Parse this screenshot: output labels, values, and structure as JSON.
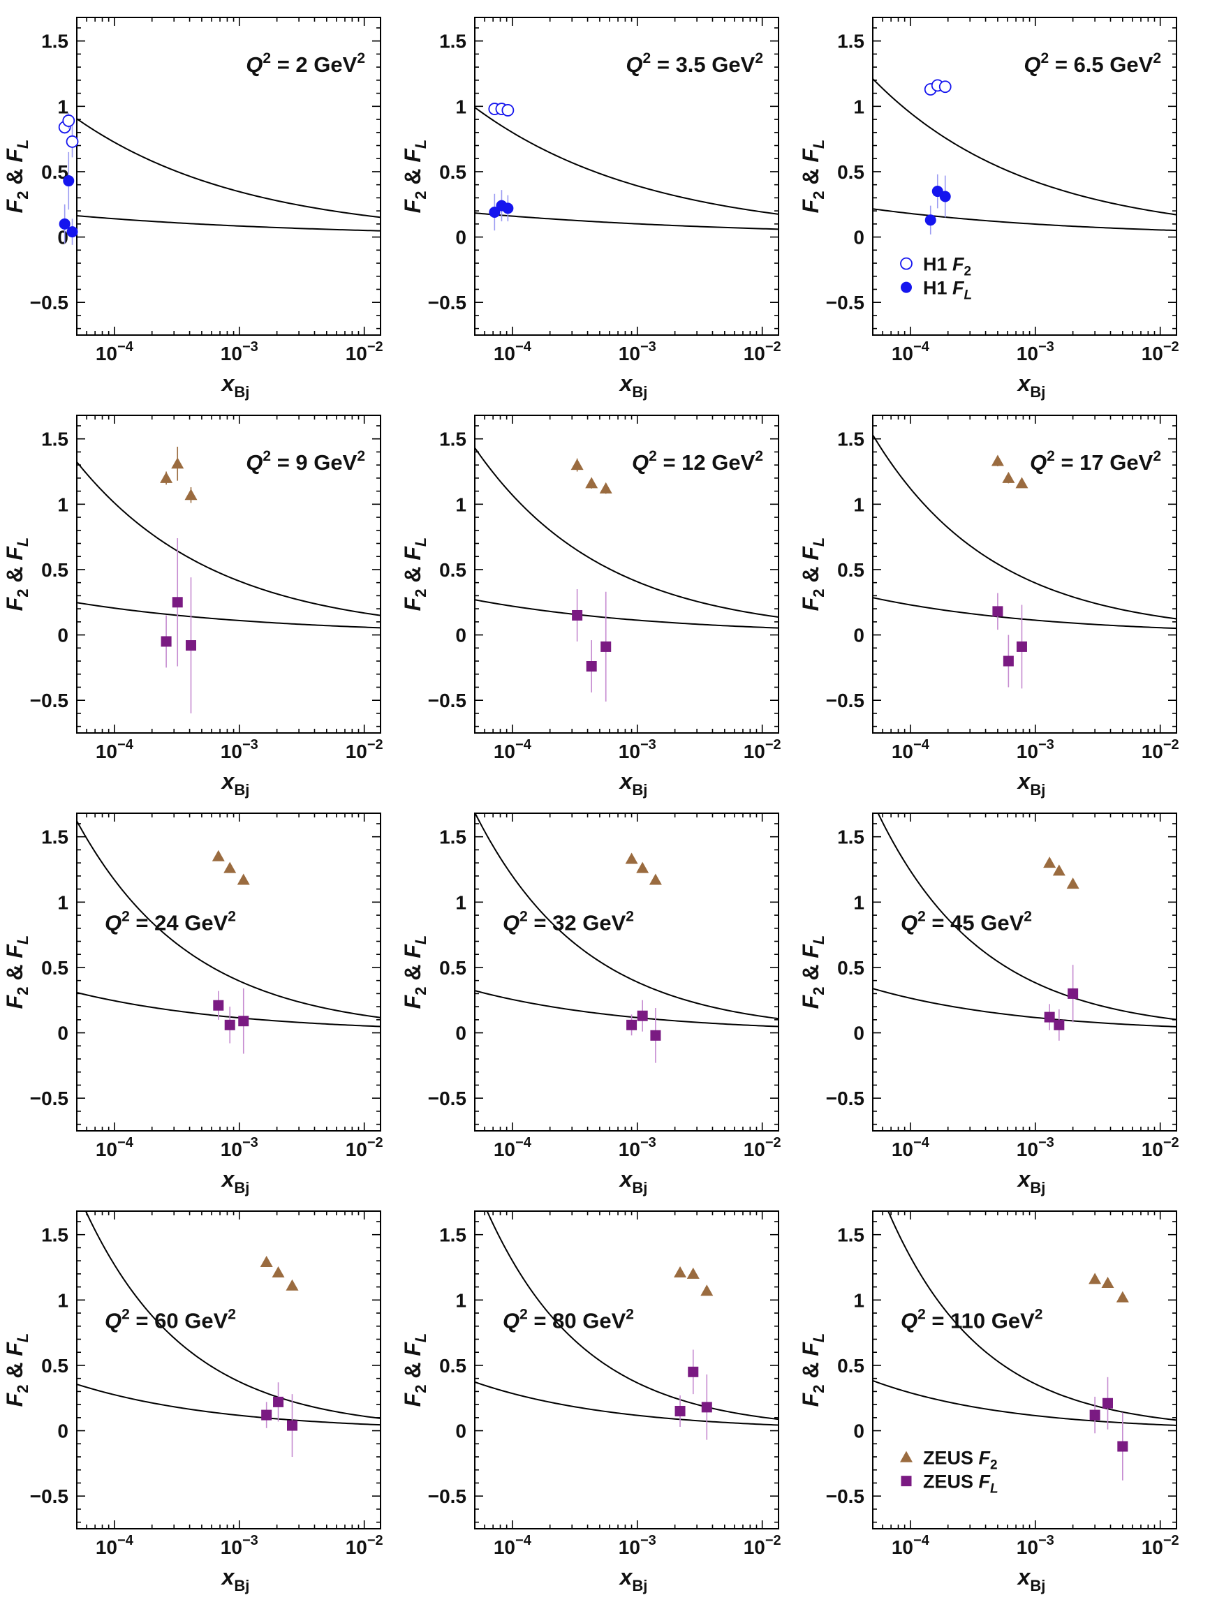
{
  "colors": {
    "h1": "#1515ee",
    "zeus_f2": "#9a6b3f",
    "zeus_fl": "#7a1a82",
    "zeus_fl_bar": "#c58ad0",
    "h1_bar": "#9a9af2",
    "curve": "#000000"
  },
  "chart_data": {
    "type": "scatter",
    "layout": "4x3 grid of panels",
    "xscale": "log",
    "xlim": [
      5e-05,
      0.0135
    ],
    "ylim": [
      -0.75,
      1.68
    ],
    "xlabel_main": "x",
    "xlabel_sub": "Bj",
    "ylabel": "F2 & FL",
    "ylabel_parts": {
      "f": "F",
      "two": "2",
      "amp": " & ",
      "l": "L"
    },
    "yticks": [
      {
        "v": -0.5,
        "label": "−0.5"
      },
      {
        "v": 0,
        "label": "0"
      },
      {
        "v": 0.5,
        "label": "0.5"
      },
      {
        "v": 1,
        "label": "1"
      },
      {
        "v": 1.5,
        "label": "1.5"
      }
    ],
    "xticks": [
      {
        "v": 0.0001,
        "base": "10",
        "exp": "−4"
      },
      {
        "v": 0.001,
        "base": "10",
        "exp": "−3"
      },
      {
        "v": 0.01,
        "base": "10",
        "exp": "−2"
      }
    ],
    "legend_h1": {
      "panel": 2,
      "position": "lower-left",
      "items": [
        {
          "label": "H1 ",
          "sym": "F",
          "sub": "2",
          "marker": "open-circle"
        },
        {
          "label": "H1 ",
          "sym": "F",
          "sub": "L",
          "marker": "filled-circle"
        }
      ]
    },
    "legend_zeus": {
      "panel": 11,
      "position": "lower-left",
      "items": [
        {
          "label": "ZEUS ",
          "sym": "F",
          "sub": "2",
          "marker": "triangle"
        },
        {
          "label": "ZEUS ",
          "sym": "F",
          "sub": "L",
          "marker": "square"
        }
      ]
    },
    "panels": [
      {
        "q2": "2",
        "q2_pos": "top-right",
        "f2_curve": {
          "a": 0.725,
          "b": 0.32
        },
        "fl_curve": {
          "a": 0.14,
          "b": 0.22
        },
        "f2": [
          {
            "x": 4e-05,
            "y": 0.84,
            "e": 0.05
          },
          {
            "x": 4.3e-05,
            "y": 0.89,
            "e": 0.06
          },
          {
            "x": 4.6e-05,
            "y": 0.73,
            "e": 0.12
          }
        ],
        "fl": [
          {
            "x": 4e-05,
            "y": 0.1,
            "e": 0.15
          },
          {
            "x": 4.3e-05,
            "y": 0.43,
            "e": 0.22
          },
          {
            "x": 4.6e-05,
            "y": 0.04,
            "e": 0.1
          }
        ],
        "f2_marker": "open-circle",
        "fl_marker": "filled-circle"
      },
      {
        "q2": "3.5",
        "q2_pos": "top-right",
        "f2_curve": {
          "a": 0.8,
          "b": 0.31
        },
        "fl_curve": {
          "a": 0.16,
          "b": 0.2
        },
        "f2": [
          {
            "x": 7.2e-05,
            "y": 0.98,
            "e": 0.04
          },
          {
            "x": 8.2e-05,
            "y": 0.98,
            "e": 0.03
          },
          {
            "x": 9.2e-05,
            "y": 0.97,
            "e": 0.03
          }
        ],
        "fl": [
          {
            "x": 7.2e-05,
            "y": 0.19,
            "e": 0.14
          },
          {
            "x": 8.2e-05,
            "y": 0.24,
            "e": 0.12
          },
          {
            "x": 9.2e-05,
            "y": 0.22,
            "e": 0.1
          }
        ],
        "f2_marker": "open-circle",
        "fl_marker": "filled-circle"
      },
      {
        "q2": "6.5",
        "q2_pos": "top-right",
        "f2_curve": {
          "a": 0.95,
          "b": 0.35
        },
        "fl_curve": {
          "a": 0.18,
          "b": 0.26
        },
        "f2": [
          {
            "x": 0.000145,
            "y": 1.13,
            "e": 0.03
          },
          {
            "x": 0.000165,
            "y": 1.16,
            "e": 0.03
          },
          {
            "x": 0.00019,
            "y": 1.15,
            "e": 0.03
          }
        ],
        "fl": [
          {
            "x": 0.000145,
            "y": 0.13,
            "e": 0.11
          },
          {
            "x": 0.000165,
            "y": 0.35,
            "e": 0.13
          },
          {
            "x": 0.00019,
            "y": 0.31,
            "e": 0.16
          }
        ],
        "f2_marker": "open-circle",
        "fl_marker": "filled-circle"
      },
      {
        "q2": "9",
        "q2_pos": "top-right",
        "f2_curve": {
          "a": 1.01,
          "b": 0.39
        },
        "fl_curve": {
          "a": 0.205,
          "b": 0.27
        },
        "f2": [
          {
            "x": 0.00026,
            "y": 1.2,
            "e": 0.05
          },
          {
            "x": 0.00032,
            "y": 1.31,
            "e": 0.13
          },
          {
            "x": 0.00041,
            "y": 1.07,
            "e": 0.06
          }
        ],
        "fl": [
          {
            "x": 0.00026,
            "y": -0.05,
            "e": 0.2
          },
          {
            "x": 0.00032,
            "y": 0.25,
            "e": 0.49
          },
          {
            "x": 0.00041,
            "y": -0.08,
            "e": 0.52
          }
        ],
        "f2_marker": "triangle",
        "fl_marker": "square"
      },
      {
        "q2": "12",
        "q2_pos": "top-right",
        "f2_curve": {
          "a": 1.07,
          "b": 0.42
        },
        "fl_curve": {
          "a": 0.22,
          "b": 0.29
        },
        "f2": [
          {
            "x": 0.00033,
            "y": 1.3,
            "e": 0.05
          },
          {
            "x": 0.00043,
            "y": 1.16,
            "e": 0.04
          },
          {
            "x": 0.00056,
            "y": 1.12,
            "e": 0.04
          }
        ],
        "fl": [
          {
            "x": 0.00033,
            "y": 0.15,
            "e": 0.2
          },
          {
            "x": 0.00043,
            "y": -0.24,
            "e": 0.2
          },
          {
            "x": 0.00056,
            "y": -0.09,
            "e": 0.42
          }
        ],
        "f2_marker": "triangle",
        "fl_marker": "square"
      },
      {
        "q2": "17",
        "q2_pos": "top-right",
        "f2_curve": {
          "a": 1.12,
          "b": 0.45
        },
        "fl_curve": {
          "a": 0.23,
          "b": 0.31
        },
        "f2": [
          {
            "x": 0.0005,
            "y": 1.33,
            "e": 0.04
          },
          {
            "x": 0.00061,
            "y": 1.2,
            "e": 0.04
          },
          {
            "x": 0.00078,
            "y": 1.16,
            "e": 0.03
          }
        ],
        "fl": [
          {
            "x": 0.0005,
            "y": 0.18,
            "e": 0.14
          },
          {
            "x": 0.00061,
            "y": -0.2,
            "e": 0.2
          },
          {
            "x": 0.00078,
            "y": -0.09,
            "e": 0.32
          }
        ],
        "f2_marker": "triangle",
        "fl_marker": "square"
      },
      {
        "q2": "24",
        "q2_pos": "middle-left",
        "f2_curve": {
          "a": 1.17,
          "b": 0.47
        },
        "fl_curve": {
          "a": 0.245,
          "b": 0.33
        },
        "f2": [
          {
            "x": 0.00068,
            "y": 1.35,
            "e": 0.03
          },
          {
            "x": 0.00084,
            "y": 1.26,
            "e": 0.03
          },
          {
            "x": 0.00108,
            "y": 1.17,
            "e": 0.03
          }
        ],
        "fl": [
          {
            "x": 0.00068,
            "y": 0.21,
            "e": 0.11
          },
          {
            "x": 0.00084,
            "y": 0.06,
            "e": 0.14
          },
          {
            "x": 0.00108,
            "y": 0.09,
            "e": 0.25
          }
        ],
        "f2_marker": "triangle",
        "fl_marker": "square"
      },
      {
        "q2": "32",
        "q2_pos": "middle-left",
        "f2_curve": {
          "a": 1.2,
          "b": 0.49
        },
        "fl_curve": {
          "a": 0.255,
          "b": 0.34
        },
        "f2": [
          {
            "x": 0.0009,
            "y": 1.33,
            "e": 0.03
          },
          {
            "x": 0.0011,
            "y": 1.26,
            "e": 0.03
          },
          {
            "x": 0.0014,
            "y": 1.17,
            "e": 0.03
          }
        ],
        "fl": [
          {
            "x": 0.0009,
            "y": 0.06,
            "e": 0.08
          },
          {
            "x": 0.0011,
            "y": 0.13,
            "e": 0.12
          },
          {
            "x": 0.0014,
            "y": -0.02,
            "e": 0.21
          }
        ],
        "f2_marker": "triangle",
        "fl_marker": "square"
      },
      {
        "q2": "45",
        "q2_pos": "middle-left",
        "f2_curve": {
          "a": 1.24,
          "b": 0.51
        },
        "fl_curve": {
          "a": 0.265,
          "b": 0.355
        },
        "f2": [
          {
            "x": 0.0013,
            "y": 1.3,
            "e": 0.03
          },
          {
            "x": 0.00155,
            "y": 1.24,
            "e": 0.03
          },
          {
            "x": 0.002,
            "y": 1.14,
            "e": 0.03
          }
        ],
        "fl": [
          {
            "x": 0.0013,
            "y": 0.12,
            "e": 0.1
          },
          {
            "x": 0.00155,
            "y": 0.06,
            "e": 0.12
          },
          {
            "x": 0.002,
            "y": 0.3,
            "e": 0.22
          }
        ],
        "f2_marker": "triangle",
        "fl_marker": "square"
      },
      {
        "q2": "60",
        "q2_pos": "middle-left",
        "f2_curve": {
          "a": 1.27,
          "b": 0.53
        },
        "fl_curve": {
          "a": 0.275,
          "b": 0.37
        },
        "f2": [
          {
            "x": 0.00165,
            "y": 1.29,
            "e": 0.03
          },
          {
            "x": 0.00205,
            "y": 1.21,
            "e": 0.03
          },
          {
            "x": 0.00265,
            "y": 1.11,
            "e": 0.03
          }
        ],
        "fl": [
          {
            "x": 0.00165,
            "y": 0.12,
            "e": 0.1
          },
          {
            "x": 0.00205,
            "y": 0.22,
            "e": 0.15
          },
          {
            "x": 0.00265,
            "y": 0.04,
            "e": 0.24
          }
        ],
        "f2_marker": "triangle",
        "fl_marker": "square"
      },
      {
        "q2": "80",
        "q2_pos": "middle-left",
        "f2_curve": {
          "a": 1.3,
          "b": 0.55
        },
        "fl_curve": {
          "a": 0.285,
          "b": 0.385
        },
        "f2": [
          {
            "x": 0.0022,
            "y": 1.21,
            "e": 0.03
          },
          {
            "x": 0.0028,
            "y": 1.2,
            "e": 0.03
          },
          {
            "x": 0.0036,
            "y": 1.07,
            "e": 0.03
          }
        ],
        "fl": [
          {
            "x": 0.0022,
            "y": 0.15,
            "e": 0.12
          },
          {
            "x": 0.0028,
            "y": 0.45,
            "e": 0.17
          },
          {
            "x": 0.0036,
            "y": 0.18,
            "e": 0.25
          }
        ],
        "f2_marker": "triangle",
        "fl_marker": "square"
      },
      {
        "q2": "110",
        "q2_pos": "middle-left",
        "f2_curve": {
          "a": 1.33,
          "b": 0.57
        },
        "fl_curve": {
          "a": 0.29,
          "b": 0.4
        },
        "f2": [
          {
            "x": 0.003,
            "y": 1.16,
            "e": 0.03
          },
          {
            "x": 0.0038,
            "y": 1.13,
            "e": 0.03
          },
          {
            "x": 0.005,
            "y": 1.02,
            "e": 0.03
          }
        ],
        "fl": [
          {
            "x": 0.003,
            "y": 0.12,
            "e": 0.14
          },
          {
            "x": 0.0038,
            "y": 0.21,
            "e": 0.2
          },
          {
            "x": 0.005,
            "y": -0.12,
            "e": 0.26
          }
        ],
        "f2_marker": "triangle",
        "fl_marker": "square"
      }
    ]
  }
}
